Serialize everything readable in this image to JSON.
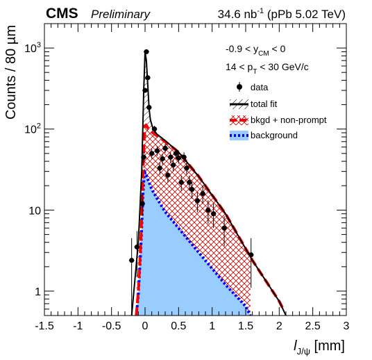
{
  "header": {
    "experiment": "CMS",
    "status": "Preliminary",
    "lumi_value": "34.6 nb",
    "lumi_exp": "-1",
    "lumi_suffix": " (pPb 5.02 TeV)"
  },
  "annotations": {
    "rapidity": {
      "pre": "-0.9 < y",
      "sub": "CM",
      "post": " < 0"
    },
    "pt": {
      "pre": "14 < p",
      "sub": "T",
      "post": " < 30  GeV/c"
    }
  },
  "colors": {
    "data": "#000000",
    "total_fit": "#000000",
    "bkgd_nonprompt_line": "#ff0000",
    "bkgd_nonprompt_hatch": "#cc0000",
    "background_line": "#0000ff",
    "background_fill": "#99ccff"
  },
  "chart_data": {
    "type": "scatter",
    "xlabel": {
      "main": "l",
      "sub": "J/ψ",
      "unit": " [mm]"
    },
    "ylabel": "Counts / 80 µm",
    "xlim": [
      -1.5,
      3
    ],
    "ylim": [
      0.5,
      2000
    ],
    "yscale": "log",
    "xticks": [
      "-1.5",
      "-1",
      "-0.5",
      "0",
      "0.5",
      "1",
      "1.5",
      "2",
      "2.5",
      "3"
    ],
    "yticks": [
      {
        "value": 1,
        "base": "1",
        "exp": ""
      },
      {
        "value": 10,
        "base": "10",
        "exp": ""
      },
      {
        "value": 100,
        "base": "10",
        "exp": "2"
      },
      {
        "value": 1000,
        "base": "10",
        "exp": "3"
      }
    ],
    "legend_position": "top-right",
    "legend": [
      {
        "key": "data",
        "label": "data"
      },
      {
        "key": "total",
        "label": "total fit"
      },
      {
        "key": "bkgd",
        "label": "bkgd + non-prompt"
      },
      {
        "key": "bg",
        "label": "background"
      }
    ],
    "series": [
      {
        "name": "data",
        "kind": "points",
        "x": [
          -0.2,
          -0.12,
          -0.04,
          -0.02,
          0.0,
          0.02,
          0.04,
          0.06,
          0.1,
          0.14,
          0.18,
          0.22,
          0.26,
          0.3,
          0.34,
          0.38,
          0.42,
          0.46,
          0.5,
          0.54,
          0.58,
          0.62,
          0.66,
          0.7,
          0.78,
          0.86,
          0.94,
          1.02,
          1.18,
          1.58
        ],
        "y": [
          2.4,
          3.5,
          12,
          45,
          300,
          900,
          430,
          185,
          50,
          100,
          54,
          33,
          43,
          58,
          27,
          45,
          36,
          50,
          44,
          22,
          45,
          33,
          22,
          18,
          13,
          16,
          10,
          9,
          6,
          2.8
        ],
        "yerr": [
          2.1,
          2.0,
          3.5,
          7,
          17,
          30,
          21,
          14,
          7,
          10,
          7.3,
          5.7,
          6.6,
          7.6,
          5.2,
          6.7,
          6.0,
          7.1,
          6.6,
          4.7,
          6.7,
          5.7,
          4.7,
          4.2,
          3.6,
          4.0,
          3.2,
          3.0,
          2.4,
          1.7
        ],
        "xerr": 0.04
      },
      {
        "name": "total fit",
        "kind": "curve",
        "x": [
          -0.2,
          -0.1,
          -0.05,
          -0.02,
          0.0,
          0.02,
          0.04,
          0.06,
          0.08,
          0.12,
          0.18,
          0.3,
          0.5,
          0.8,
          1.2,
          1.6,
          2.0,
          2.1
        ],
        "y": [
          0.5,
          4,
          30,
          300,
          900,
          700,
          350,
          180,
          130,
          100,
          86,
          72,
          52,
          26,
          9,
          2.4,
          0.75,
          0.5
        ]
      },
      {
        "name": "bkgd + non-prompt",
        "kind": "curve",
        "x": [
          -0.13,
          -0.1,
          -0.07,
          -0.05,
          -0.03,
          -0.015,
          0.0,
          0.015,
          0.03,
          0.05,
          0.1,
          0.2,
          0.3,
          0.5,
          0.8,
          1.2,
          1.6,
          2.0,
          2.06
        ],
        "y": [
          0.5,
          1.0,
          3.0,
          8,
          30,
          70,
          110,
          112,
          108,
          100,
          92,
          80,
          70,
          52,
          26,
          9,
          2.4,
          0.75,
          0.6
        ]
      },
      {
        "name": "background",
        "kind": "area",
        "x": [
          -0.13,
          -0.1,
          -0.07,
          -0.05,
          -0.03,
          -0.015,
          0.0,
          0.02,
          0.05,
          0.1,
          0.2,
          0.3,
          0.5,
          0.8,
          1.0,
          1.2,
          1.4,
          1.5,
          1.57
        ],
        "y": [
          0.5,
          0.9,
          2.5,
          6,
          16,
          26,
          29,
          27,
          23,
          18,
          13,
          9.5,
          6,
          3.0,
          1.9,
          1.2,
          0.8,
          0.65,
          0.5
        ]
      }
    ]
  }
}
